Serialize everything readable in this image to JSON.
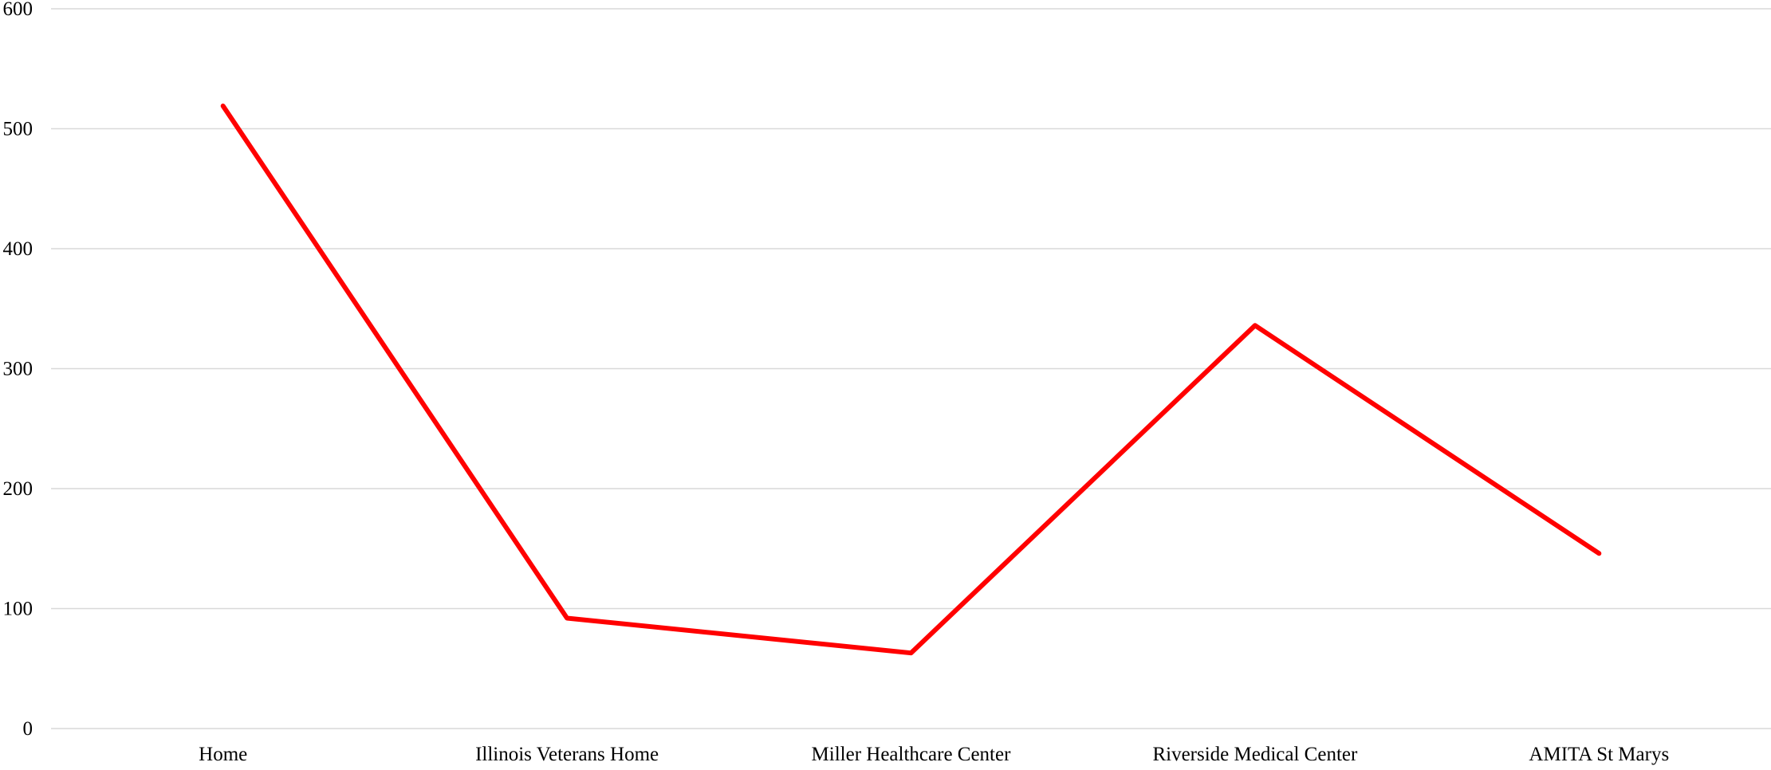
{
  "chart_data": {
    "type": "line",
    "title": "",
    "xlabel": "",
    "ylabel": "",
    "categories": [
      "Home",
      "Illinois Veterans Home",
      "Miller Healthcare Center",
      "Riverside Medical Center",
      "AMITA St Marys"
    ],
    "series": [
      {
        "values": [
          519,
          92,
          63,
          336,
          146
        ],
        "color": "#ff0000"
      }
    ],
    "ylim": [
      0,
      600
    ],
    "yticks": [
      "0",
      "100",
      "200",
      "300",
      "400",
      "500",
      "600"
    ],
    "grid": true,
    "legend": "none",
    "colors": {
      "line": "#ff0000",
      "grid": "#d9d9d9"
    }
  }
}
